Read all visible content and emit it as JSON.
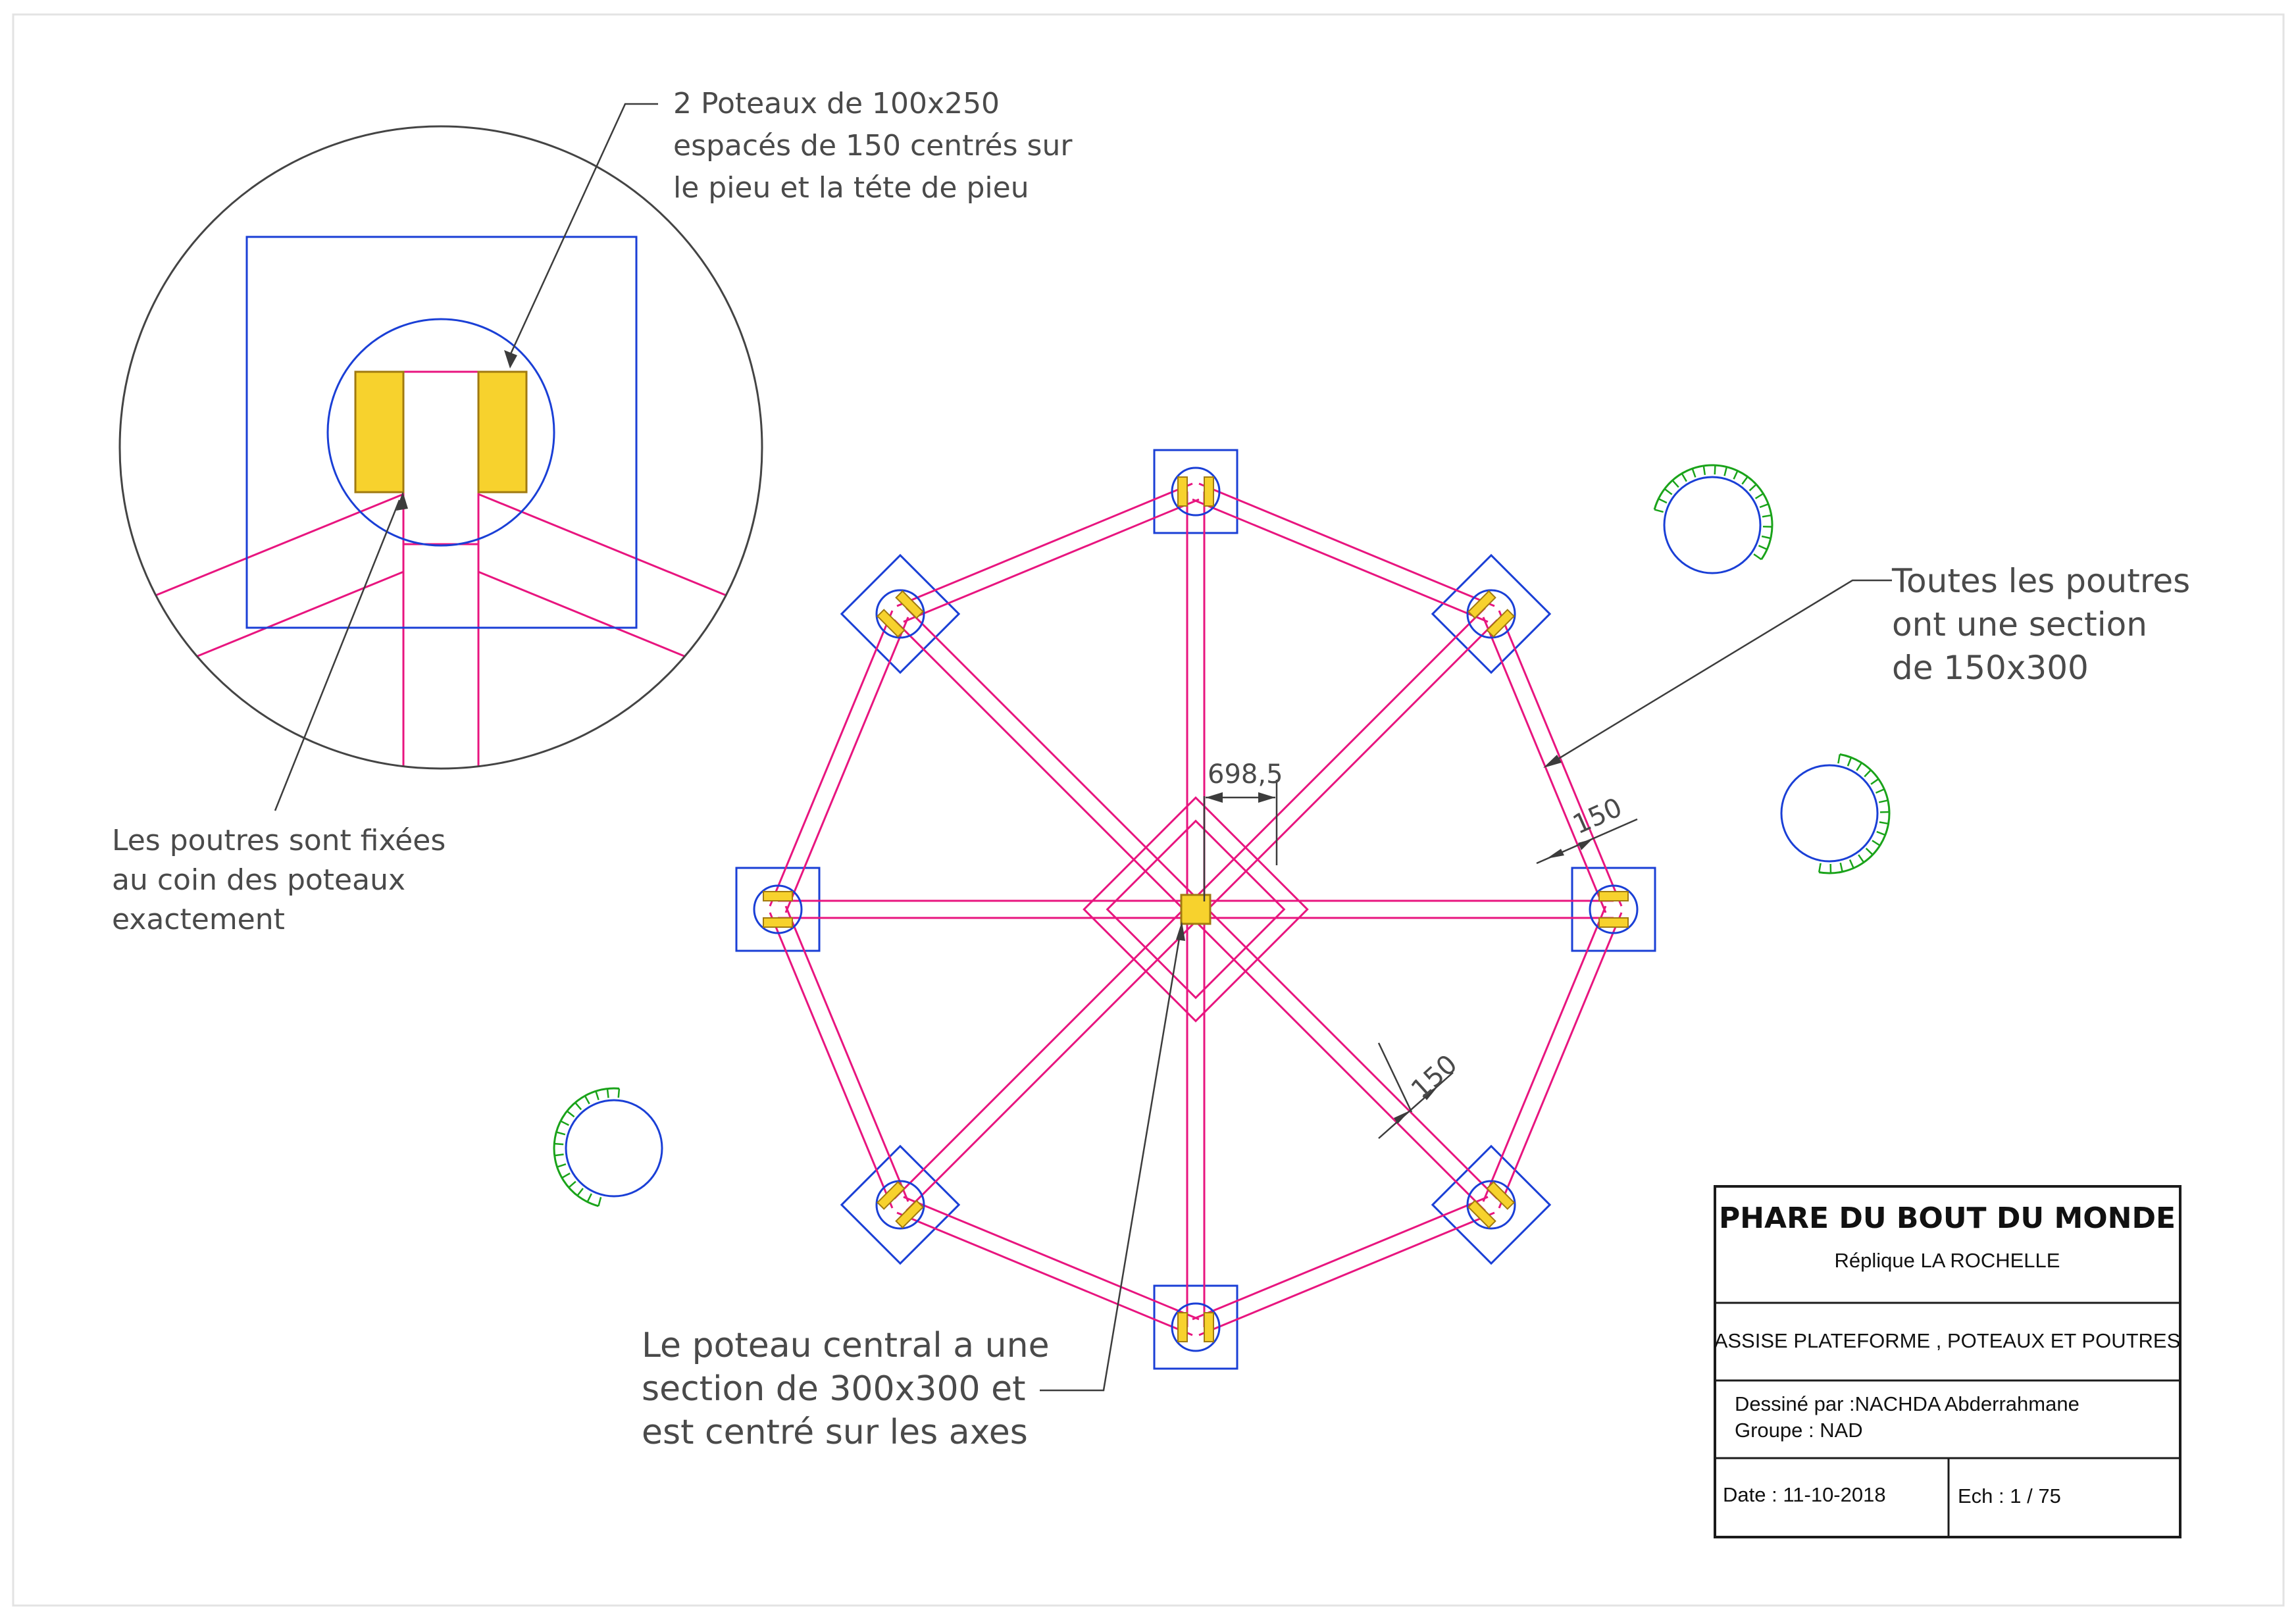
{
  "annotations": {
    "detail_top": [
      "2 Poteaux de 100x250",
      "espacés de 150 centrés sur",
      "le pieu et la téte de pieu"
    ],
    "detail_bottom": [
      "Les poutres sont fixées",
      "au coin des poteaux",
      "exactement"
    ],
    "beams": [
      "Toutes les poutres",
      "ont une section",
      "de 150x300"
    ],
    "central_post": [
      "Le poteau central a une",
      "section de 300x300 et",
      "est centré sur les axes"
    ]
  },
  "dimensions": {
    "offset": "698,5",
    "beam_width_right": "150",
    "beam_width_diag": "150"
  },
  "title_block": {
    "title": "PHARE DU BOUT DU MONDE",
    "subtitle": "Réplique LA ROCHELLE",
    "sheet_title": "ASSISE PLATEFORME , POTEAUX ET POUTRES",
    "drawn_by": "Dessiné par :NACHDA Abderrahmane",
    "group": "Groupe : NAD",
    "date": "Date : 11-10-2018",
    "scale": "Ech : 1 / 75"
  },
  "colors": {
    "beam": "#e8157f",
    "footing": "#1a3fd6",
    "post_fill": "#f7d22d",
    "post_stroke": "#a07a10",
    "hatch": "#1aa31a",
    "leader": "#3c3c3c",
    "frame": "#1b1b1b"
  }
}
